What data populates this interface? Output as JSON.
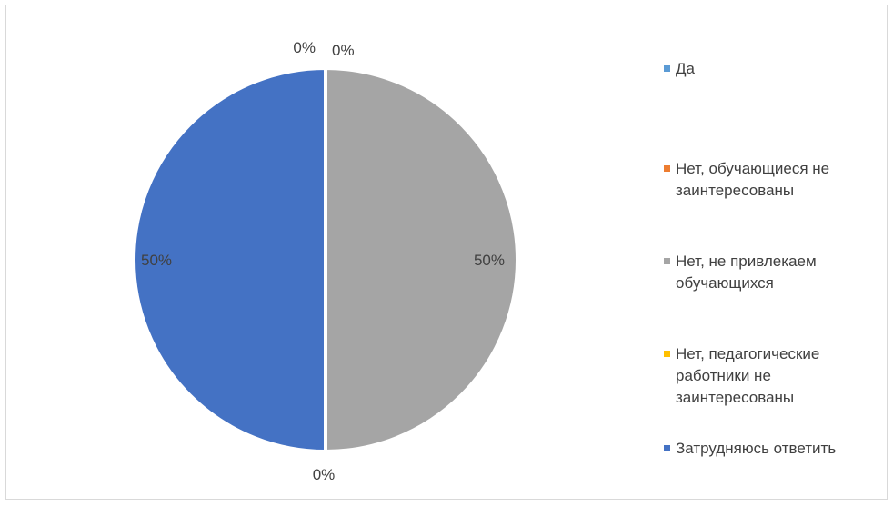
{
  "chart_data": {
    "type": "pie",
    "title": "",
    "categories": [
      "Да",
      "Нет, обучающиеся не заинтересованы",
      "Нет, не привлекаем обучающихся",
      "Нет, педагогические работники не заинтересованы",
      "Затрудняюсь ответить"
    ],
    "values": [
      0,
      0,
      50,
      0,
      50
    ],
    "data_labels": [
      "0%",
      "0%",
      "50%",
      "0%",
      "50%"
    ],
    "colors": [
      "#5B9BD5",
      "#ED7D31",
      "#A5A5A5",
      "#FFC000",
      "#4472C4"
    ],
    "legend_position": "right",
    "legend_labels": [
      [
        "Да"
      ],
      [
        "Нет, обучающиеся не",
        "заинтересованы"
      ],
      [
        "Нет, не привлекаем",
        "обучающихся"
      ],
      [
        "Нет, педагогические",
        "работники не",
        "заинтересованы"
      ],
      [
        "Затрудняюсь ответить"
      ]
    ]
  }
}
